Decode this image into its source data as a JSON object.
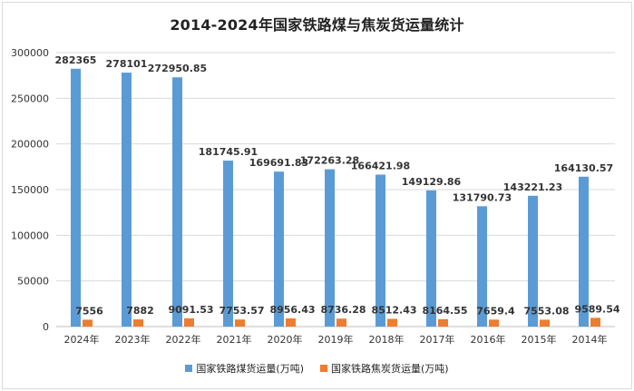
{
  "chart_data": {
    "type": "bar",
    "title": "2014-2024年国家铁路煤与焦炭货运量统计",
    "categories": [
      "2024年",
      "2023年",
      "2022年",
      "2021年",
      "2020年",
      "2019年",
      "2018年",
      "2017年",
      "2016年",
      "2015年",
      "2014年"
    ],
    "series": [
      {
        "name": "国家铁路煤货运量(万吨)",
        "color": "#5b9bd5",
        "values": [
          282365,
          278101,
          272950.85,
          181745.91,
          169691.83,
          172263.28,
          166421.98,
          149129.86,
          131790.73,
          143221.23,
          164130.57
        ],
        "labels": [
          "282365",
          "278101",
          "272950.85",
          "181745.91",
          "169691.83",
          "172263.28",
          "166421.98",
          "149129.86",
          "131790.73",
          "143221.23",
          "164130.57"
        ]
      },
      {
        "name": "国家铁路焦炭货运量(万吨)",
        "color": "#ed7d31",
        "values": [
          7556,
          7882,
          9091.53,
          7753.57,
          8956.43,
          8736.28,
          8512.43,
          8164.55,
          7659.4,
          7553.08,
          9589.54
        ],
        "labels": [
          "7556",
          "7882",
          "9091.53",
          "7753.57",
          "8956.43",
          "8736.28",
          "8512.43",
          "8164.55",
          "7659.4",
          "7553.08",
          "9589.54"
        ]
      }
    ],
    "ylim": [
      0,
      300000
    ],
    "yticks": [
      0,
      50000,
      100000,
      150000,
      200000,
      250000,
      300000
    ],
    "ytick_labels": [
      "0",
      "50000",
      "100000",
      "150000",
      "200000",
      "250000",
      "300000"
    ],
    "grid": true,
    "legend_position": "bottom"
  }
}
